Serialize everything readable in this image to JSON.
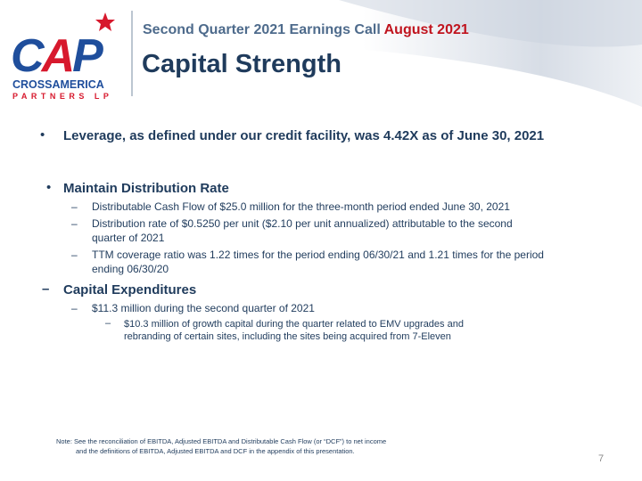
{
  "logo": {
    "letters": [
      "C",
      "A",
      "P"
    ],
    "name": "CROSSAMERICA",
    "suffix": "PARTNERS LP"
  },
  "header": {
    "event": "Second Quarter 2021 Earnings Call",
    "date": "August 2021",
    "title": "Capital Strength"
  },
  "bullets": [
    {
      "text": "Leverage, as defined under our credit facility, was 4.42X as of June 30, 2021"
    },
    {
      "text": "Maintain Distribution Rate"
    },
    {
      "text": "Distributable Cash Flow of $25.0 million for the three-month period ended June 30, 2021"
    },
    {
      "text": "Distribution rate of $0.5250 per unit ($2.10 per unit annualized) attributable to the second quarter of 2021"
    },
    {
      "text": "TTM coverage ratio was 1.22 times for the period ending 06/30/21 and 1.21 times for the period ending 06/30/20"
    },
    {
      "text": "Capital Expenditures"
    },
    {
      "text": "$11.3 million during the second quarter of 2021"
    },
    {
      "text": "$10.3 million of growth capital during the quarter related to EMV upgrades and rebranding of certain sites, including the sites being acquired from 7-Eleven"
    }
  ],
  "note": {
    "lines": [
      "Note: See the reconciliation of EBITDA, Adjusted EBITDA and Distributable Cash Flow (or “DCF”) to net income",
      "and the definitions of EBITDA, Adjusted EBITDA and DCF in the appendix of this presentation."
    ]
  },
  "page_number": "7"
}
